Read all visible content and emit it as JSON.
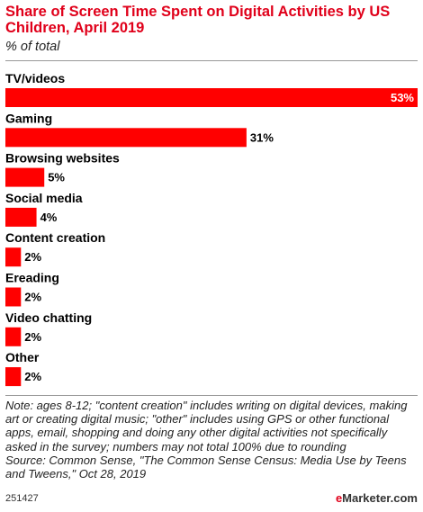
{
  "title": "Share of Screen Time Spent on Digital Activities by US Children, April 2019",
  "subtitle": "% of total",
  "note": "Note: ages 8-12; \"content creation\" includes writing on digital devices, making art or creating digital music; \"other\" includes using GPS or other functional apps, email, shopping and doing any other digital activities not specifically asked in the survey; numbers may not total 100% due to rounding",
  "source": "Source: Common Sense, \"The Common Sense Census: Media Use by Teens and Tweens,\" Oct 28, 2019",
  "footer": {
    "chart_id": "251427",
    "brand_prefix": "e",
    "brand_rest": "Marketer.com"
  },
  "colors": {
    "bar": "#ff0000",
    "title": "#e0001a"
  },
  "chart_data": {
    "type": "bar",
    "orientation": "horizontal",
    "categories": [
      "TV/videos",
      "Gaming",
      "Browsing websites",
      "Social media",
      "Content creation",
      "Ereading",
      "Video chatting",
      "Other"
    ],
    "values": [
      53,
      31,
      5,
      4,
      2,
      2,
      2,
      2
    ],
    "value_labels": [
      "53%",
      "31%",
      "5%",
      "4%",
      "2%",
      "2%",
      "2%",
      "2%"
    ],
    "unit": "%",
    "xlim": [
      0,
      53
    ],
    "grid": false,
    "legend": "none"
  }
}
